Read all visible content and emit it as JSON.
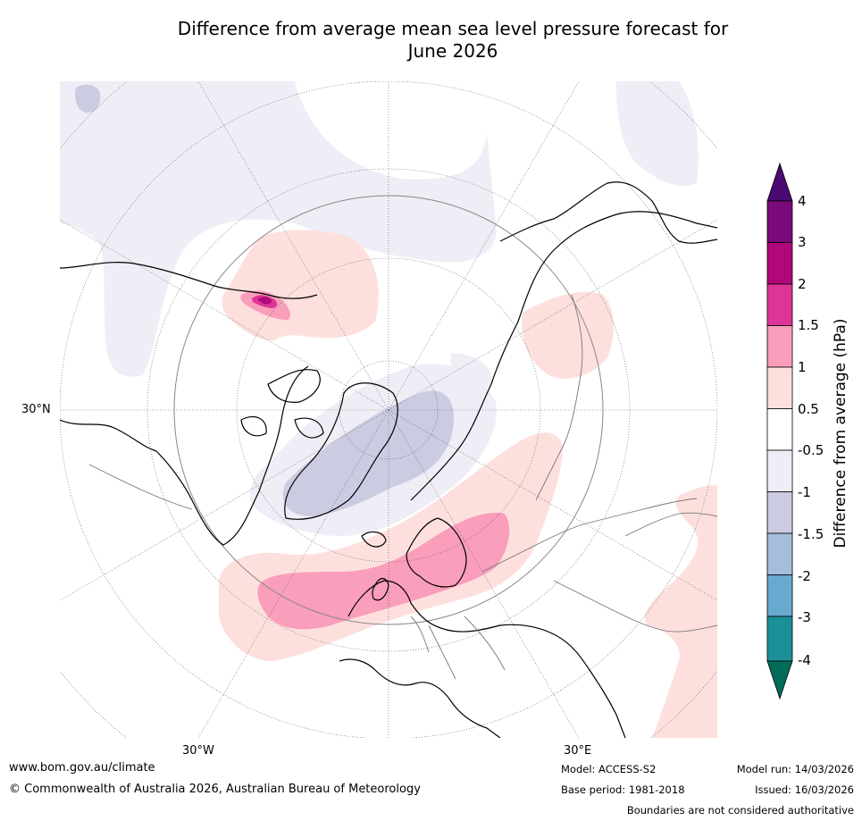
{
  "title": {
    "line1": "Difference from average mean sea level pressure forecast for",
    "line2": "June 2026"
  },
  "map": {
    "projection": "north-polar-stereographic",
    "lon_labels": [
      "30°W",
      "30°E"
    ],
    "lat_labels": [
      "30°N"
    ]
  },
  "colorbar": {
    "title": "Difference from average (hPa)",
    "ticks": [
      "4",
      "3",
      "2",
      "1.5",
      "1",
      "0.5",
      "-0.5",
      "-1",
      "-1.5",
      "-2",
      "-3",
      "-4"
    ],
    "colors": {
      "above_4": "#4b0a72",
      "3_to_4": "#7b0a7b",
      "2_to_3": "#b0077a",
      "1_5_to_2": "#dd3497",
      "1_to_1_5": "#f99ebb",
      "0_5_to_1": "#fde0dd",
      "neutral": "#ffffff",
      "m1_to_m0_5": "#efedf5",
      "m1_5_to_m1": "#cbcbe2",
      "m2_to_m1_5": "#a6bddb",
      "m3_to_m2": "#67a9cf",
      "m4_to_m3": "#1c9099",
      "below_m4": "#016c59"
    }
  },
  "footer": {
    "website": "www.bom.gov.au/climate",
    "copyright": "© Commonwealth of Australia 2026, Australian Bureau of Meteorology",
    "model": "Model: ACCESS-S2",
    "base_period": "Base period: 1981-2018",
    "model_run": "Model run: 14/03/2026",
    "issued": "Issued: 16/03/2026",
    "disclaimer": "Boundaries are not considered authoritative"
  }
}
